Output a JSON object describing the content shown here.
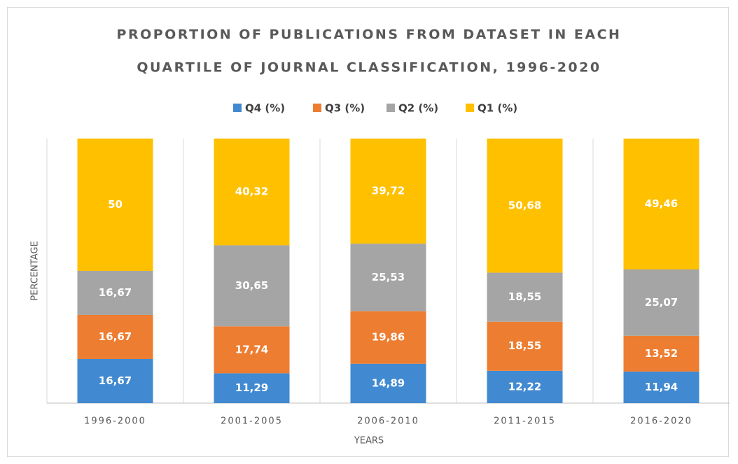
{
  "chart_data": {
    "type": "stacked_bar",
    "title": [
      "PROPORTION OF PUBLICATIONS FROM DATASET IN EACH",
      "QUARTILE OF JOURNAL CLASSIFICATION, 1996-2020"
    ],
    "x_label": "YEARS",
    "y_label": "PERCENTAGE",
    "categories": [
      "1996-2000",
      "2001-2005",
      "2006-2010",
      "2011-2015",
      "2016-2020"
    ],
    "series": [
      {
        "name": "Q4 (%)",
        "color": "#4189d0",
        "values": [
          16.67,
          11.29,
          14.89,
          12.22,
          11.94
        ],
        "value_labels": [
          "16,67",
          "11,29",
          "14,89",
          "12,22",
          "11,94"
        ]
      },
      {
        "name": "Q3 (%)",
        "color": "#ed7d31",
        "values": [
          16.67,
          17.74,
          19.86,
          18.55,
          13.52
        ],
        "value_labels": [
          "16,67",
          "17,74",
          "19,86",
          "18,55",
          "13,52"
        ]
      },
      {
        "name": "Q2 (%)",
        "color": "#a5a5a5",
        "values": [
          16.67,
          30.65,
          25.53,
          18.55,
          25.07
        ],
        "value_labels": [
          "16,67",
          "30,65",
          "25,53",
          "18,55",
          "25,07"
        ]
      },
      {
        "name": "Q1 (%)",
        "color": "#ffc000",
        "values": [
          50,
          40.32,
          39.72,
          50.68,
          49.46
        ],
        "value_labels": [
          "50",
          "40,32",
          "39,72",
          "50,68",
          "49,46"
        ]
      }
    ],
    "ylim": [
      0,
      100
    ]
  }
}
